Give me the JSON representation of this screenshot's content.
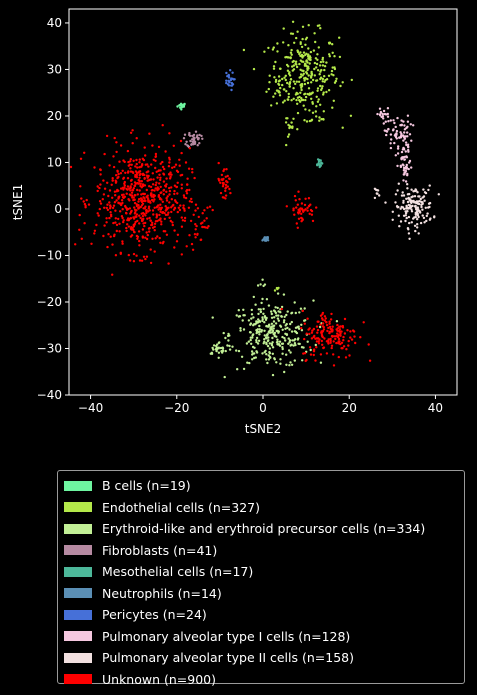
{
  "chart_data": {
    "type": "scatter",
    "title": "",
    "xlabel": "tSNE2",
    "ylabel": "tSNE1",
    "xlim": [
      -45,
      45
    ],
    "ylim": [
      -40,
      43
    ],
    "xticks": [
      -40,
      -20,
      0,
      20,
      40
    ],
    "yticks": [
      -40,
      -30,
      -20,
      -10,
      0,
      10,
      20,
      30,
      40
    ],
    "xtick_labels": [
      "−40",
      "−20",
      "0",
      "20",
      "40"
    ],
    "ytick_labels": [
      "−40",
      "−30",
      "−20",
      "−10",
      "0",
      "10",
      "20",
      "30",
      "40"
    ],
    "grid": false,
    "legend_position": "below",
    "series": [
      {
        "name": "B cells (n=19)",
        "color": "#6ef5a0",
        "clusters": [
          {
            "cx": -18.8,
            "cy": 22.2,
            "sx": 0.5,
            "sy": 0.3,
            "n": 19
          }
        ]
      },
      {
        "name": "Endothelial cells (n=327)",
        "color": "#b4e84a",
        "clusters": [
          {
            "cx": 9.5,
            "cy": 29,
            "sx": 4,
            "sy": 4.5,
            "n": 297
          },
          {
            "cx": 6.5,
            "cy": 17,
            "sx": 0.5,
            "sy": 0.8,
            "n": 10
          },
          {
            "cx": 4,
            "cy": 26,
            "sx": 0.8,
            "sy": 1,
            "n": 8
          },
          {
            "cx": 13.5,
            "cy": 19,
            "sx": 0.5,
            "sy": 0.3,
            "n": 4
          },
          {
            "cx": 11,
            "cy": 19,
            "sx": 0.5,
            "sy": 0.3,
            "n": 4
          },
          {
            "cx": 3,
            "cy": -17,
            "sx": 0.5,
            "sy": 0.5,
            "n": 4
          }
        ]
      },
      {
        "name": "Erythroid-like and erythroid precursor cells (n=334)",
        "color": "#c2ef96",
        "clusters": [
          {
            "cx": 2,
            "cy": -27,
            "sx": 4.8,
            "sy": 3.6,
            "n": 300
          },
          {
            "cx": -10,
            "cy": -30,
            "sx": 1.5,
            "sy": 0.7,
            "n": 30
          },
          {
            "cx": 0,
            "cy": -16.5,
            "sx": 0.6,
            "sy": 0.4,
            "n": 4
          }
        ]
      },
      {
        "name": "Fibroblasts (n=41)",
        "color": "#b68aa2",
        "clusters": [
          {
            "cx": -16,
            "cy": 15,
            "sx": 0.8,
            "sy": 0.9,
            "n": 41
          }
        ]
      },
      {
        "name": "Mesothelial cells (n=17)",
        "color": "#4db89a",
        "clusters": [
          {
            "cx": 13,
            "cy": 10,
            "sx": 0.4,
            "sy": 0.5,
            "n": 17
          }
        ]
      },
      {
        "name": "Neutrophils (n=14)",
        "color": "#5b8fb5",
        "clusters": [
          {
            "cx": 0.5,
            "cy": -6.5,
            "sx": 0.6,
            "sy": 0.4,
            "n": 14
          }
        ]
      },
      {
        "name": "Pericytes (n=24)",
        "color": "#4670d8",
        "clusters": [
          {
            "cx": -8,
            "cy": 27.5,
            "sx": 0.6,
            "sy": 1,
            "n": 24
          }
        ]
      },
      {
        "name": "Pulmonary alveolar type I cells (n=128)",
        "color": "#f6c8e0",
        "clusters": [
          {
            "cx": 31.5,
            "cy": 16,
            "sx": 1.5,
            "sy": 2,
            "n": 70
          },
          {
            "cx": 33,
            "cy": 9,
            "sx": 0.8,
            "sy": 2,
            "n": 40
          },
          {
            "cx": 28,
            "cy": 20,
            "sx": 1,
            "sy": 1,
            "n": 18
          }
        ]
      },
      {
        "name": "Pulmonary alveolar type II cells (n=158)",
        "color": "#f2e0e0",
        "clusters": [
          {
            "cx": 35,
            "cy": 0.5,
            "sx": 2.2,
            "sy": 2.2,
            "n": 150
          },
          {
            "cx": 26.5,
            "cy": 3.5,
            "sx": 0.4,
            "sy": 0.4,
            "n": 8
          }
        ]
      },
      {
        "name": "Unknown (n=900)",
        "color": "#ff0000",
        "clusters": [
          {
            "cx": -28,
            "cy": 2,
            "sx": 5.5,
            "sy": 5.5,
            "n": 640
          },
          {
            "cx": 15.5,
            "cy": -27,
            "sx": 3.3,
            "sy": 2.6,
            "n": 160
          },
          {
            "cx": 9,
            "cy": 0,
            "sx": 1.5,
            "sy": 1.5,
            "n": 45
          },
          {
            "cx": -9,
            "cy": 5.5,
            "sx": 0.9,
            "sy": 2,
            "n": 35
          },
          {
            "cx": -15,
            "cy": -4,
            "sx": 0.8,
            "sy": 2,
            "n": 20
          }
        ]
      }
    ]
  }
}
